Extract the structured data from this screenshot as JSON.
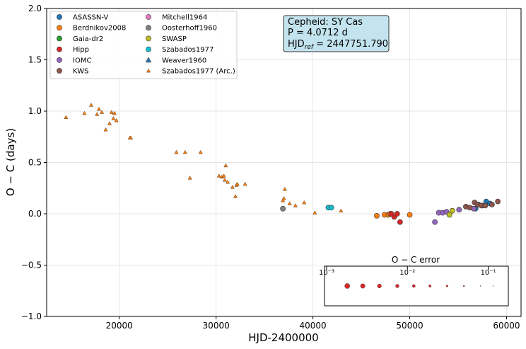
{
  "chart_data": {
    "type": "scatter",
    "xlabel": "HJD-2400000",
    "ylabel": "O − C (days)",
    "xlim": [
      12500,
      61500
    ],
    "ylim": [
      -1.0,
      2.0
    ],
    "xticks": [
      20000,
      30000,
      40000,
      50000,
      60000
    ],
    "xtick_labels": [
      "20000",
      "30000",
      "40000",
      "50000",
      "60000"
    ],
    "yticks": [
      -1.0,
      -0.5,
      0.0,
      0.5,
      1.0,
      1.5,
      2.0
    ],
    "ytick_labels": [
      "−1.0",
      "−0.5",
      "0.0",
      "0.5",
      "1.0",
      "1.5",
      "2.0"
    ],
    "grid": true,
    "legend_position": "top-left",
    "info_box": {
      "line1": "Cepheid: SY Cas",
      "line2": "P = 4.0712 d",
      "line3_prefix": "HJD",
      "line3_sub": "ref",
      "line3_value": " = 2447751.790"
    },
    "series": [
      {
        "name": "ASASSN-V",
        "color": "#1f77b4",
        "marker": "circle",
        "points": [
          [
            56800,
            0.05
          ],
          [
            57900,
            0.12
          ],
          [
            58300,
            0.1
          ]
        ]
      },
      {
        "name": "Berdnikov2008",
        "color": "#ff7f0e",
        "marker": "circle",
        "points": [
          [
            46600,
            -0.02
          ],
          [
            47400,
            -0.01
          ],
          [
            47800,
            -0.01
          ],
          [
            48000,
            0.0
          ],
          [
            50000,
            -0.01
          ]
        ]
      },
      {
        "name": "Gaia-dr2",
        "color": "#2ca02c",
        "marker": "circle",
        "points": [
          [
            57100,
            0.09
          ]
        ]
      },
      {
        "name": "Hipp",
        "color": "#d62728",
        "marker": "circle",
        "points": [
          [
            48100,
            0.0
          ],
          [
            48400,
            -0.03
          ],
          [
            48700,
            0.0
          ],
          [
            49000,
            -0.08
          ]
        ]
      },
      {
        "name": "IOMC",
        "color": "#9467bd",
        "marker": "circle",
        "points": [
          [
            52600,
            -0.08
          ],
          [
            53000,
            0.01
          ],
          [
            53400,
            0.01
          ],
          [
            53800,
            0.02
          ],
          [
            55100,
            0.04
          ],
          [
            56600,
            0.05
          ],
          [
            57500,
            0.08
          ]
        ]
      },
      {
        "name": "KWS",
        "color": "#8c564b",
        "marker": "circle",
        "points": [
          [
            55800,
            0.07
          ],
          [
            56200,
            0.06
          ],
          [
            56700,
            0.11
          ],
          [
            57000,
            0.09
          ],
          [
            57400,
            0.08
          ],
          [
            57800,
            0.08
          ],
          [
            58500,
            0.09
          ],
          [
            59100,
            0.12
          ]
        ]
      },
      {
        "name": "Mitchell1964",
        "color": "#e377c2",
        "marker": "circle",
        "points": []
      },
      {
        "name": "Oosterhoff1960",
        "color": "#7f7f7f",
        "marker": "circle",
        "points": [
          [
            36900,
            0.05
          ]
        ]
      },
      {
        "name": "SWASP",
        "color": "#bcbd22",
        "marker": "circle",
        "points": [
          [
            54100,
            -0.01
          ],
          [
            54400,
            0.03
          ]
        ]
      },
      {
        "name": "Szabados1977",
        "color": "#17becf",
        "marker": "circle",
        "points": [
          [
            41600,
            0.06
          ],
          [
            41900,
            0.06
          ]
        ]
      },
      {
        "name": "Weaver1960",
        "color": "#1f77b4",
        "marker": "triangle",
        "points": []
      },
      {
        "name": "Szabados1977 (Arc.)",
        "color": "#ff7f0e",
        "marker": "small-triangle",
        "points": [
          [
            14500,
            0.94
          ],
          [
            16400,
            0.98
          ],
          [
            17100,
            1.06
          ],
          [
            17700,
            0.97
          ],
          [
            17900,
            1.02
          ],
          [
            18200,
            0.99
          ],
          [
            18600,
            0.82
          ],
          [
            19000,
            0.88
          ],
          [
            19200,
            0.99
          ],
          [
            19400,
            0.93
          ],
          [
            19500,
            0.98
          ],
          [
            19700,
            0.91
          ],
          [
            21100,
            0.74
          ],
          [
            21200,
            0.74
          ],
          [
            25900,
            0.6
          ],
          [
            26800,
            0.6
          ],
          [
            27300,
            0.35
          ],
          [
            28400,
            0.6
          ],
          [
            30300,
            0.37
          ],
          [
            30600,
            0.36
          ],
          [
            30800,
            0.37
          ],
          [
            30900,
            0.33
          ],
          [
            31000,
            0.47
          ],
          [
            31200,
            0.31
          ],
          [
            31700,
            0.26
          ],
          [
            32100,
            0.28
          ],
          [
            32200,
            0.29
          ],
          [
            32000,
            0.17
          ],
          [
            33000,
            0.29
          ],
          [
            36900,
            0.13
          ],
          [
            37000,
            0.15
          ],
          [
            37100,
            0.24
          ],
          [
            37600,
            0.1
          ],
          [
            38200,
            0.08
          ],
          [
            39100,
            0.11
          ],
          [
            40200,
            0.01
          ],
          [
            42900,
            0.03
          ]
        ]
      }
    ],
    "inset": {
      "title": "O − C error",
      "ticks": [
        0.001,
        0.01,
        0.1
      ],
      "tick_labels": [
        "10⁻³",
        "10⁻²",
        "10⁻¹"
      ],
      "xlim_log": [
        -3,
        -0.9
      ],
      "dot_color": "#d62728",
      "dots": [
        0.0018,
        0.0028,
        0.0045,
        0.0075,
        0.012,
        0.019,
        0.031,
        0.05,
        0.08,
        0.115
      ]
    }
  }
}
